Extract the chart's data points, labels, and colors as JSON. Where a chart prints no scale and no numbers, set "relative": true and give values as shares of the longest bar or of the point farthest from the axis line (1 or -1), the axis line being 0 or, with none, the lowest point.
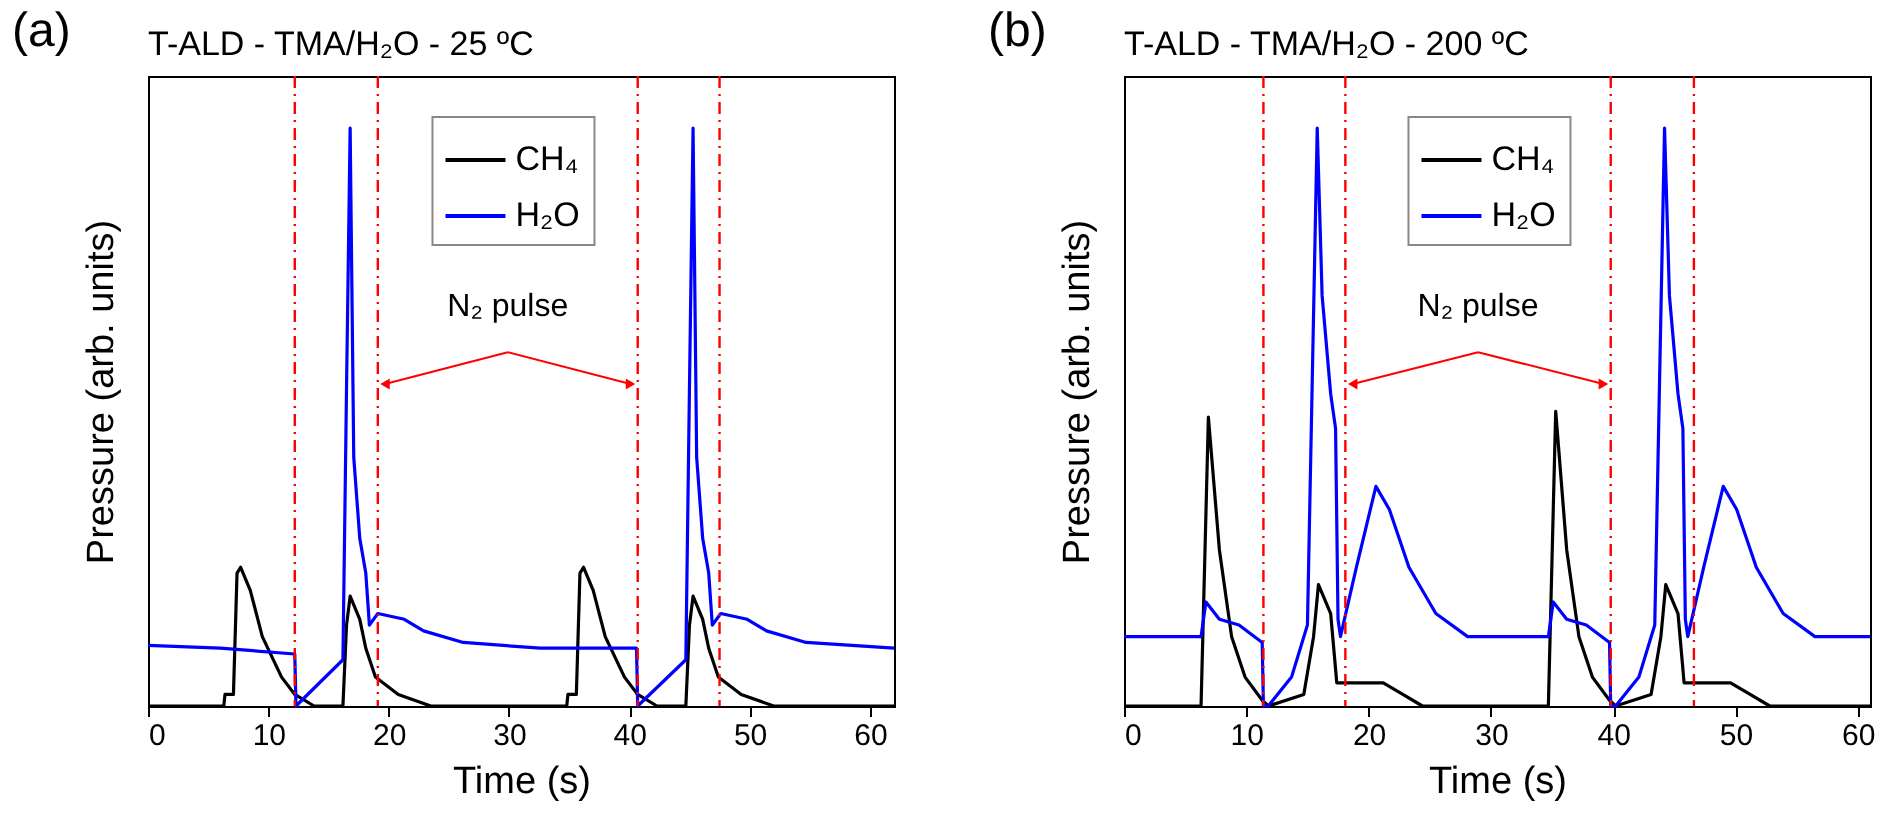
{
  "chart_data": [
    {
      "type": "line",
      "title": "T-ALD - TMA/H₂O - 25 ºC",
      "xlabel": "Time (s)",
      "ylabel": "Pressure (arb. units)",
      "relative": true,
      "xlim": [
        0,
        62
      ],
      "xticks": [
        0,
        10,
        20,
        30,
        40,
        50,
        60
      ],
      "legend": "top",
      "grid": false,
      "annotations": [
        "(a)",
        "N₂ pulse"
      ],
      "ref_lines": [
        {
          "axis": "x",
          "value": 12.2,
          "color": "#ff0000",
          "line_style": "dashed"
        },
        {
          "axis": "x",
          "value": 19.1,
          "color": "#ff0000",
          "line_style": "dashed"
        },
        {
          "axis": "x",
          "value": 40.7,
          "color": "#ff0000",
          "line_style": "dashed"
        },
        {
          "axis": "x",
          "value": 47.5,
          "color": "#ff0000",
          "line_style": "dashed"
        }
      ],
      "series": [
        {
          "name": "CH₄",
          "color": "#000000",
          "x": [
            0,
            6.3,
            6.4,
            7.1,
            7.4,
            7.7,
            8.5,
            9.5,
            11.1,
            12.2,
            13.8,
            16.2,
            16.5,
            16.8,
            17.6,
            18.1,
            18.9,
            20.8,
            23.5,
            34.8,
            34.9,
            35.6,
            35.9,
            36.2,
            37,
            38,
            39.6,
            40.7,
            42.3,
            44.7,
            45,
            45.3,
            46.1,
            46.6,
            47.4,
            49.3,
            52,
            62
          ],
          "values": [
            0,
            0,
            0.02,
            0.02,
            0.23,
            0.24,
            0.2,
            0.12,
            0.05,
            0.02,
            0,
            0,
            0.14,
            0.19,
            0.15,
            0.1,
            0.05,
            0.02,
            0,
            0,
            0.02,
            0.02,
            0.23,
            0.24,
            0.2,
            0.12,
            0.05,
            0.02,
            0,
            0,
            0.14,
            0.19,
            0.15,
            0.1,
            0.05,
            0.02,
            0,
            0
          ]
        },
        {
          "name": "H₂O",
          "color": "#0000ff",
          "x": [
            0,
            6,
            12.2,
            12.3,
            16.2,
            16.5,
            16.8,
            17.1,
            17.6,
            18.1,
            18.4,
            19.1,
            21.3,
            22.9,
            26.2,
            32.6,
            40.6,
            40.7,
            44.7,
            45,
            45.3,
            45.6,
            46.1,
            46.6,
            46.9,
            47.6,
            49.8,
            51.4,
            54.7,
            62
          ],
          "values": [
            0.105,
            0.1,
            0.09,
            0,
            0.08,
            0.55,
            1,
            0.43,
            0.29,
            0.23,
            0.14,
            0.16,
            0.15,
            0.13,
            0.11,
            0.1,
            0.1,
            0,
            0.08,
            0.55,
            1,
            0.43,
            0.29,
            0.23,
            0.14,
            0.16,
            0.15,
            0.13,
            0.11,
            0.1
          ]
        }
      ]
    },
    {
      "type": "line",
      "title": "T-ALD - TMA/H₂O - 200 ºC",
      "xlabel": "Time (s)",
      "ylabel": "Pressure (arb. units)",
      "relative": true,
      "xlim": [
        0,
        61
      ],
      "xticks": [
        0,
        10,
        20,
        30,
        40,
        50,
        60
      ],
      "legend": "top",
      "grid": false,
      "annotations": [
        "(b)",
        "N₂ pulse"
      ],
      "ref_lines": [
        {
          "axis": "x",
          "value": 11.4,
          "color": "#ff0000",
          "line_style": "dashed"
        },
        {
          "axis": "x",
          "value": 18.1,
          "color": "#ff0000",
          "line_style": "dashed"
        },
        {
          "axis": "x",
          "value": 39.8,
          "color": "#ff0000",
          "line_style": "dashed"
        },
        {
          "axis": "x",
          "value": 46.6,
          "color": "#ff0000",
          "line_style": "dashed"
        }
      ],
      "series": [
        {
          "name": "CH₄",
          "color": "#000000",
          "x": [
            0,
            6.3,
            6.9,
            7.8,
            8.8,
            9.9,
            11.3,
            11.8,
            14.7,
            15.5,
            15.9,
            16.9,
            17.4,
            18.5,
            21.2,
            22.8,
            24.4,
            34.7,
            35.3,
            36.2,
            37.2,
            38.3,
            39.7,
            40.2,
            43.1,
            43.9,
            44.3,
            45.3,
            45.8,
            46.9,
            49.6,
            51.2,
            52.8,
            61
          ],
          "values": [
            0,
            0,
            0.5,
            0.27,
            0.12,
            0.05,
            0.01,
            0,
            0.02,
            0.12,
            0.21,
            0.16,
            0.04,
            0.04,
            0.04,
            0.02,
            0,
            0,
            0.51,
            0.27,
            0.12,
            0.05,
            0.01,
            0,
            0.02,
            0.12,
            0.21,
            0.16,
            0.04,
            0.04,
            0.04,
            0.02,
            0,
            0
          ]
        },
        {
          "name": "H₂O",
          "color": "#0000ff",
          "x": [
            0,
            6.3,
            6.7,
            7.8,
            9.4,
            11.3,
            11.4,
            11.8,
            13.7,
            15,
            15.4,
            15.8,
            16.2,
            16.9,
            17.3,
            17.5,
            17.7,
            19,
            20.6,
            21.7,
            23.3,
            25.5,
            28.1,
            34.7,
            35.1,
            36.2,
            37.8,
            39.7,
            39.8,
            40.2,
            42.1,
            43.4,
            43.8,
            44.2,
            44.6,
            45.3,
            45.7,
            45.9,
            46.1,
            47.4,
            49,
            50.1,
            51.7,
            53.9,
            56.5,
            61
          ],
          "values": [
            0.12,
            0.12,
            0.18,
            0.15,
            0.14,
            0.11,
            0,
            0,
            0.05,
            0.14,
            0.57,
            1,
            0.71,
            0.54,
            0.48,
            0.15,
            0.12,
            0.24,
            0.38,
            0.34,
            0.24,
            0.16,
            0.12,
            0.12,
            0.18,
            0.15,
            0.14,
            0.11,
            0,
            0,
            0.05,
            0.14,
            0.57,
            1,
            0.71,
            0.54,
            0.48,
            0.15,
            0.12,
            0.24,
            0.38,
            0.34,
            0.24,
            0.16,
            0.12,
            0.12
          ]
        }
      ]
    }
  ]
}
